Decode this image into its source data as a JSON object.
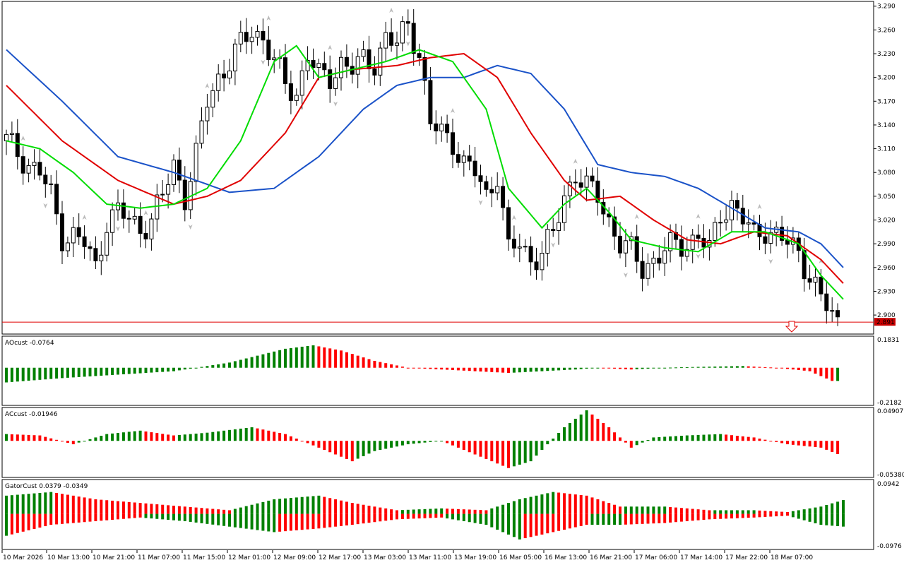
{
  "chart_data": [
    {
      "type": "candlestick",
      "name": "main",
      "price_ticks": [
        "3.290",
        "3.260",
        "3.230",
        "3.200",
        "3.170",
        "3.140",
        "3.110",
        "3.080",
        "3.050",
        "3.020",
        "2.990",
        "2.960",
        "2.930",
        "2.900"
      ],
      "price_ticks_num": [
        3.29,
        3.26,
        3.23,
        3.2,
        3.17,
        3.14,
        3.11,
        3.08,
        3.05,
        3.02,
        2.99,
        2.96,
        2.93,
        2.9
      ],
      "ylim": [
        2.876,
        3.296
      ],
      "current_price_label": "2.891",
      "current_price": 2.891,
      "time_labels": [
        "10 Mar 2026",
        "10 Mar 13:00",
        "10 Mar 21:00",
        "11 Mar 07:00",
        "11 Mar 15:00",
        "12 Mar 01:00",
        "12 Mar 09:00",
        "12 Mar 17:00",
        "13 Mar 03:00",
        "13 Mar 11:00",
        "13 Mar 19:00",
        "16 Mar 05:00",
        "16 Mar 13:00",
        "16 Mar 21:00",
        "17 Mar 06:00",
        "17 Mar 14:00",
        "17 Mar 22:00",
        "18 Mar 07:00"
      ],
      "close_anchors": [
        [
          0,
          3.12
        ],
        [
          4,
          3.09
        ],
        [
          6,
          3.08
        ],
        [
          8,
          3.05
        ],
        [
          10,
          3.0
        ],
        [
          12,
          3.0
        ],
        [
          14,
          2.99
        ],
        [
          16,
          2.96
        ],
        [
          18,
          3.02
        ],
        [
          20,
          3.03
        ],
        [
          22,
          3.02
        ],
        [
          24,
          3.01
        ],
        [
          26,
          3.02
        ],
        [
          28,
          3.05
        ],
        [
          30,
          3.09
        ],
        [
          32,
          3.05
        ],
        [
          34,
          3.1
        ],
        [
          36,
          3.17
        ],
        [
          38,
          3.2
        ],
        [
          40,
          3.22
        ],
        [
          42,
          3.24
        ],
        [
          44,
          3.26
        ],
        [
          46,
          3.25
        ],
        [
          48,
          3.22
        ],
        [
          50,
          3.19
        ],
        [
          52,
          3.18
        ],
        [
          54,
          3.23
        ],
        [
          56,
          3.2
        ],
        [
          58,
          3.2
        ],
        [
          60,
          3.22
        ],
        [
          62,
          3.21
        ],
        [
          64,
          3.22
        ],
        [
          66,
          3.22
        ],
        [
          68,
          3.25
        ],
        [
          70,
          3.24
        ],
        [
          72,
          3.27
        ],
        [
          74,
          3.23
        ],
        [
          76,
          3.14
        ],
        [
          78,
          3.13
        ],
        [
          80,
          3.12
        ],
        [
          82,
          3.09
        ],
        [
          84,
          3.08
        ],
        [
          86,
          3.05
        ],
        [
          88,
          3.08
        ],
        [
          90,
          2.98
        ],
        [
          92,
          2.99
        ],
        [
          94,
          2.97
        ],
        [
          96,
          2.98
        ],
        [
          98,
          3.0
        ],
        [
          100,
          3.05
        ],
        [
          102,
          3.08
        ],
        [
          104,
          3.06
        ],
        [
          106,
          3.05
        ],
        [
          108,
          3.02
        ],
        [
          110,
          2.99
        ],
        [
          112,
          2.98
        ],
        [
          114,
          2.96
        ],
        [
          116,
          2.97
        ],
        [
          118,
          2.98
        ],
        [
          120,
          2.99
        ],
        [
          122,
          2.99
        ],
        [
          124,
          3.0
        ],
        [
          126,
          2.98
        ],
        [
          128,
          3.03
        ],
        [
          130,
          3.04
        ],
        [
          132,
          3.02
        ],
        [
          134,
          3.0
        ],
        [
          136,
          3.01
        ],
        [
          138,
          3.0
        ],
        [
          140,
          2.99
        ],
        [
          142,
          2.98
        ],
        [
          144,
          2.95
        ],
        [
          146,
          2.92
        ],
        [
          148,
          2.9
        ],
        [
          149,
          2.891
        ]
      ],
      "series": [
        {
          "name": "jaw",
          "color": "#1a52c8",
          "points": [
            [
              0,
              3.235
            ],
            [
              10,
              3.17
            ],
            [
              20,
              3.1
            ],
            [
              30,
              3.08
            ],
            [
              40,
              3.055
            ],
            [
              48,
              3.06
            ],
            [
              56,
              3.1
            ],
            [
              64,
              3.16
            ],
            [
              70,
              3.19
            ],
            [
              76,
              3.2
            ],
            [
              82,
              3.2
            ],
            [
              88,
              3.215
            ],
            [
              94,
              3.205
            ],
            [
              100,
              3.16
            ],
            [
              106,
              3.09
            ],
            [
              112,
              3.08
            ],
            [
              118,
              3.075
            ],
            [
              124,
              3.06
            ],
            [
              130,
              3.035
            ],
            [
              136,
              3.01
            ],
            [
              142,
              3.005
            ],
            [
              146,
              2.99
            ],
            [
              150,
              2.96
            ]
          ]
        },
        {
          "name": "teeth",
          "color": "#e00000",
          "points": [
            [
              0,
              3.19
            ],
            [
              10,
              3.12
            ],
            [
              20,
              3.07
            ],
            [
              30,
              3.04
            ],
            [
              36,
              3.05
            ],
            [
              42,
              3.07
            ],
            [
              50,
              3.13
            ],
            [
              56,
              3.2
            ],
            [
              62,
              3.21
            ],
            [
              70,
              3.215
            ],
            [
              76,
              3.225
            ],
            [
              82,
              3.23
            ],
            [
              88,
              3.2
            ],
            [
              94,
              3.13
            ],
            [
              100,
              3.07
            ],
            [
              104,
              3.045
            ],
            [
              110,
              3.05
            ],
            [
              116,
              3.02
            ],
            [
              122,
              2.995
            ],
            [
              128,
              2.99
            ],
            [
              134,
              3.005
            ],
            [
              140,
              3.0
            ],
            [
              146,
              2.97
            ],
            [
              150,
              2.94
            ]
          ]
        },
        {
          "name": "lips",
          "color": "#00dc00",
          "points": [
            [
              0,
              3.12
            ],
            [
              6,
              3.11
            ],
            [
              12,
              3.08
            ],
            [
              18,
              3.04
            ],
            [
              24,
              3.035
            ],
            [
              30,
              3.04
            ],
            [
              36,
              3.06
            ],
            [
              42,
              3.12
            ],
            [
              48,
              3.22
            ],
            [
              52,
              3.24
            ],
            [
              56,
              3.2
            ],
            [
              62,
              3.21
            ],
            [
              68,
              3.22
            ],
            [
              74,
              3.235
            ],
            [
              80,
              3.22
            ],
            [
              86,
              3.16
            ],
            [
              90,
              3.06
            ],
            [
              96,
              3.01
            ],
            [
              100,
              3.04
            ],
            [
              104,
              3.06
            ],
            [
              108,
              3.03
            ],
            [
              112,
              2.995
            ],
            [
              118,
              2.985
            ],
            [
              124,
              2.98
            ],
            [
              130,
              3.005
            ],
            [
              136,
              3.005
            ],
            [
              142,
              2.99
            ],
            [
              146,
              2.95
            ],
            [
              150,
              2.92
            ]
          ]
        }
      ]
    },
    {
      "type": "histogram",
      "name": "AOcust",
      "label": "AOcust -0.0764",
      "ticks": [
        "0.1831",
        "-0.2182"
      ],
      "ticks_num": [
        0.1831,
        -0.2182
      ],
      "ylim": [
        -0.2182,
        0.1831
      ],
      "color_up": "#008000",
      "color_down": "#ff0000",
      "anchors": [
        [
          0,
          -0.085
        ],
        [
          10,
          -0.06
        ],
        [
          20,
          -0.04
        ],
        [
          30,
          -0.02
        ],
        [
          40,
          0.03
        ],
        [
          50,
          0.11
        ],
        [
          55,
          0.13
        ],
        [
          60,
          0.1
        ],
        [
          66,
          0.04
        ],
        [
          72,
          0.0
        ],
        [
          78,
          -0.01
        ],
        [
          84,
          -0.02
        ],
        [
          90,
          -0.03
        ],
        [
          96,
          -0.02
        ],
        [
          102,
          -0.01
        ],
        [
          106,
          0.0
        ],
        [
          112,
          -0.01
        ],
        [
          118,
          0.0
        ],
        [
          124,
          0.005
        ],
        [
          132,
          0.01
        ],
        [
          138,
          0.0
        ],
        [
          144,
          -0.02
        ],
        [
          148,
          -0.0764
        ]
      ]
    },
    {
      "type": "histogram",
      "name": "ACcust",
      "label": "ACcust -0.01946",
      "ticks": [
        "0.04907",
        "-0.05380"
      ],
      "ticks_num": [
        0.04907,
        -0.0538
      ],
      "ylim": [
        -0.0538,
        0.04907
      ],
      "color_up": "#008000",
      "color_down": "#ff0000",
      "anchors": [
        [
          0,
          0.01
        ],
        [
          6,
          0.008
        ],
        [
          12,
          -0.005
        ],
        [
          18,
          0.01
        ],
        [
          24,
          0.015
        ],
        [
          30,
          0.008
        ],
        [
          36,
          0.012
        ],
        [
          44,
          0.02
        ],
        [
          50,
          0.01
        ],
        [
          56,
          -0.01
        ],
        [
          62,
          -0.03
        ],
        [
          66,
          -0.015
        ],
        [
          72,
          -0.005
        ],
        [
          78,
          0.0
        ],
        [
          84,
          -0.02
        ],
        [
          90,
          -0.04
        ],
        [
          94,
          -0.03
        ],
        [
          100,
          0.02
        ],
        [
          104,
          0.045
        ],
        [
          108,
          0.02
        ],
        [
          112,
          -0.01
        ],
        [
          116,
          0.005
        ],
        [
          122,
          0.008
        ],
        [
          128,
          0.01
        ],
        [
          134,
          0.005
        ],
        [
          140,
          -0.005
        ],
        [
          146,
          -0.01
        ],
        [
          149,
          -0.01946
        ]
      ]
    },
    {
      "type": "histogram",
      "name": "GatorCust",
      "label": "GatorCust 0.0379 -0.0349",
      "ticks": [
        "0.0942",
        "-0.0976"
      ],
      "ticks_num": [
        0.0942,
        -0.0976
      ],
      "ylim": [
        -0.0976,
        0.0942
      ],
      "color_up": "#008000",
      "color_down": "#ff0000",
      "upper_anchors": [
        [
          0,
          0.05
        ],
        [
          8,
          0.06
        ],
        [
          16,
          0.04
        ],
        [
          24,
          0.03
        ],
        [
          32,
          0.02
        ],
        [
          40,
          0.01
        ],
        [
          48,
          0.04
        ],
        [
          56,
          0.05
        ],
        [
          62,
          0.03
        ],
        [
          70,
          0.01
        ],
        [
          78,
          0.015
        ],
        [
          86,
          0.01
        ],
        [
          92,
          0.04
        ],
        [
          98,
          0.06
        ],
        [
          104,
          0.05
        ],
        [
          110,
          0.02
        ],
        [
          118,
          0.02
        ],
        [
          126,
          0.01
        ],
        [
          134,
          0.01
        ],
        [
          140,
          0.005
        ],
        [
          146,
          0.02
        ],
        [
          150,
          0.0379
        ]
      ],
      "lower_anchors": [
        [
          0,
          -0.06
        ],
        [
          8,
          -0.03
        ],
        [
          16,
          -0.02
        ],
        [
          24,
          -0.01
        ],
        [
          32,
          -0.02
        ],
        [
          40,
          -0.035
        ],
        [
          48,
          -0.05
        ],
        [
          56,
          -0.04
        ],
        [
          62,
          -0.03
        ],
        [
          70,
          -0.015
        ],
        [
          78,
          -0.01
        ],
        [
          86,
          -0.03
        ],
        [
          92,
          -0.07
        ],
        [
          98,
          -0.05
        ],
        [
          104,
          -0.03
        ],
        [
          110,
          -0.03
        ],
        [
          118,
          -0.025
        ],
        [
          126,
          -0.015
        ],
        [
          134,
          -0.01
        ],
        [
          140,
          -0.005
        ],
        [
          146,
          -0.03
        ],
        [
          150,
          -0.0349
        ]
      ]
    }
  ]
}
